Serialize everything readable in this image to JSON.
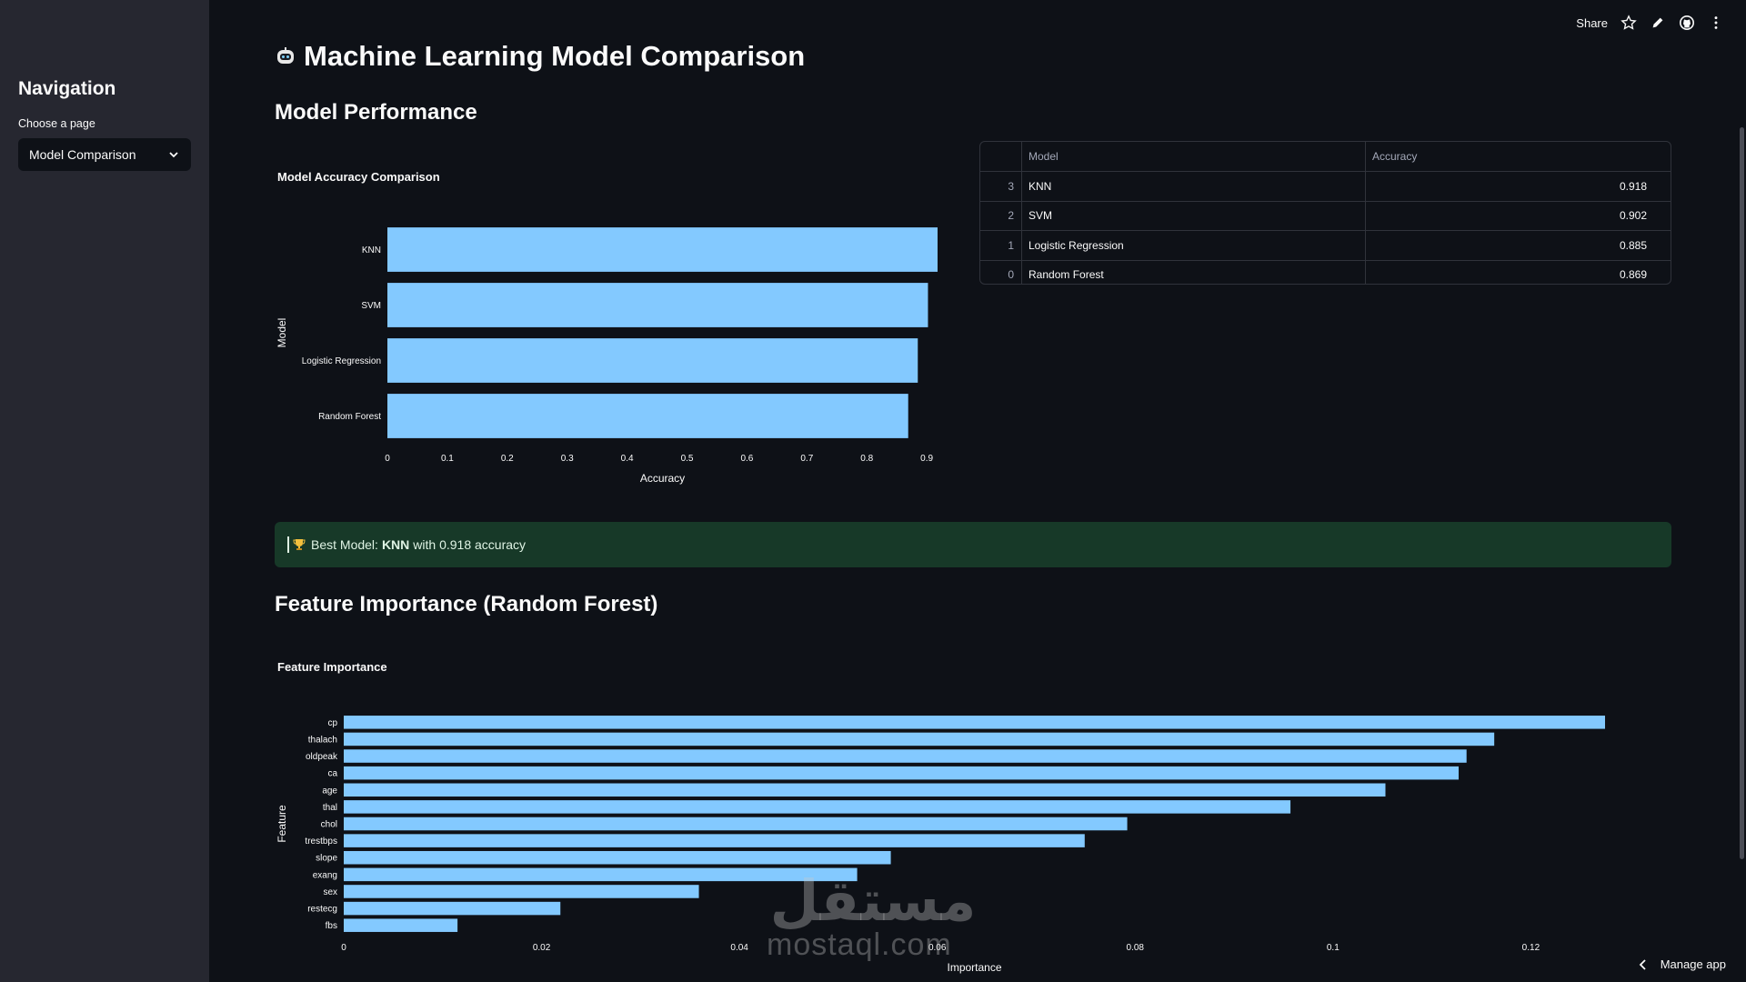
{
  "sidebar": {
    "title": "Navigation",
    "select_label": "Choose a page",
    "selected_page": "Model Comparison"
  },
  "toolbar": {
    "share_label": "Share",
    "icons": [
      "star-icon",
      "pencil-icon",
      "github-icon",
      "more-vertical-icon"
    ]
  },
  "page": {
    "title": "Machine Learning Model Comparison",
    "title_icon": "robot-face-icon",
    "section_performance": "Model Performance",
    "section_features": "Feature Importance (Random Forest)"
  },
  "accuracy_table": {
    "headers": [
      "",
      "Model",
      "Accuracy"
    ],
    "rows": [
      {
        "index": "3",
        "model": "KNN",
        "accuracy": "0.918"
      },
      {
        "index": "2",
        "model": "SVM",
        "accuracy": "0.902"
      },
      {
        "index": "1",
        "model": "Logistic Regression",
        "accuracy": "0.885"
      },
      {
        "index": "0",
        "model": "Random Forest",
        "accuracy": "0.869"
      }
    ]
  },
  "best_model": {
    "prefix": "Best Model:",
    "model": "KNN",
    "suffix": "with 0.918 accuracy",
    "icon": "trophy-icon",
    "color": "#173928"
  },
  "chart_data": [
    {
      "type": "bar",
      "orientation": "horizontal",
      "title": "Model Accuracy Comparison",
      "xlabel": "Accuracy",
      "ylabel": "Model",
      "categories": [
        "KNN",
        "SVM",
        "Logistic Regression",
        "Random Forest"
      ],
      "values": [
        0.918,
        0.902,
        0.885,
        0.869
      ],
      "xlim": [
        0,
        0.918
      ],
      "xticks": [
        "0",
        "0.1",
        "0.2",
        "0.3",
        "0.4",
        "0.5",
        "0.6",
        "0.7",
        "0.8",
        "0.9"
      ],
      "bar_color": "#83c9ff",
      "grid": false
    },
    {
      "type": "bar",
      "orientation": "horizontal",
      "title": "Feature Importance",
      "xlabel": "Importance",
      "ylabel": "Feature",
      "categories": [
        "cp",
        "thalach",
        "oldpeak",
        "ca",
        "age",
        "thal",
        "chol",
        "trestbps",
        "slope",
        "exang",
        "sex",
        "restecg",
        "fbs"
      ],
      "values": [
        0.1275,
        0.1163,
        0.1135,
        0.1127,
        0.1053,
        0.0957,
        0.0792,
        0.0749,
        0.0553,
        0.0519,
        0.0359,
        0.0219,
        0.0115
      ],
      "xlim": [
        0,
        0.1275
      ],
      "xticks": [
        "0",
        "0.02",
        "0.04",
        "0.06",
        "0.08",
        "0.1",
        "0.12"
      ],
      "bar_color": "#83c9ff",
      "grid": false
    }
  ],
  "footer": {
    "manage_label": "Manage app"
  },
  "watermark": {
    "arabic": "مستقل",
    "latin": "mostaql.com"
  }
}
